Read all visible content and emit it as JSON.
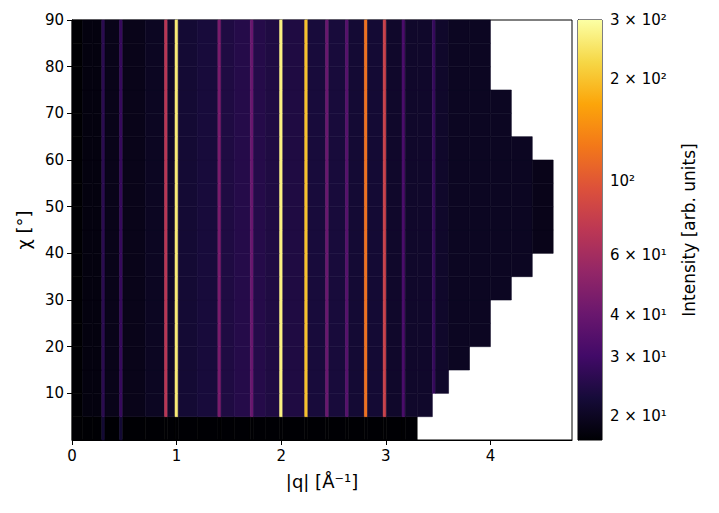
{
  "chart_data": {
    "type": "heatmap",
    "x_label": "|q| [Å⁻¹]",
    "y_label": "χ [°]",
    "xlim": [
      0,
      4.78
    ],
    "xticks": [
      0,
      1,
      2,
      3,
      4
    ],
    "ylim": [
      0,
      90
    ],
    "yticks": [
      10,
      20,
      30,
      40,
      50,
      60,
      70,
      80,
      90
    ],
    "grid": false,
    "color": "inferno",
    "q_edges": [
      0,
      0.1,
      0.2,
      0.285,
      0.315,
      0.455,
      0.485,
      0.7,
      0.885,
      0.915,
      0.985,
      1.015,
      1.2,
      1.395,
      1.425,
      1.55,
      1.705,
      1.735,
      1.85,
      1.985,
      2.015,
      2.225,
      2.255,
      2.425,
      2.455,
      2.615,
      2.645,
      2.795,
      2.825,
      2.975,
      3.005,
      3.155,
      3.185,
      3.3,
      3.445,
      3.475,
      3.6,
      3.8,
      4.0,
      4.2,
      4.4,
      4.6,
      4.78
    ],
    "chi_edges": [
      0,
      5,
      10,
      15,
      20,
      25,
      30,
      35,
      40,
      45,
      50,
      55,
      60,
      65,
      70,
      75,
      80,
      85,
      90
    ],
    "cells": [
      [
        16,
        16,
        16,
        22,
        16,
        22,
        16,
        16,
        16,
        16,
        16,
        16,
        16,
        16,
        16,
        16,
        16,
        16,
        16,
        16,
        16,
        16,
        16,
        16,
        16,
        16,
        16,
        16,
        16,
        16,
        16,
        16,
        16,
        null,
        null,
        null,
        null,
        null,
        null,
        null,
        null,
        null
      ],
      [
        17,
        18,
        18,
        26,
        19,
        28,
        19,
        20,
        70,
        21,
        260,
        22,
        23,
        45,
        24,
        25,
        40,
        25,
        24,
        270,
        24,
        200,
        23,
        40,
        23,
        35,
        22,
        120,
        22,
        80,
        21,
        32,
        21,
        21,
        null,
        null,
        null,
        null,
        null,
        null,
        null,
        null
      ],
      [
        17,
        18,
        18,
        26,
        19,
        28,
        19,
        20,
        70,
        21,
        260,
        22,
        23,
        45,
        24,
        25,
        40,
        25,
        24,
        270,
        24,
        200,
        23,
        40,
        23,
        35,
        22,
        120,
        22,
        80,
        21,
        32,
        21,
        21,
        28,
        21,
        null,
        null,
        null,
        null,
        null,
        null
      ],
      [
        17,
        18,
        18,
        26,
        19,
        28,
        19,
        20,
        70,
        21,
        260,
        22,
        23,
        45,
        24,
        25,
        40,
        25,
        24,
        270,
        24,
        200,
        23,
        40,
        23,
        35,
        22,
        120,
        22,
        80,
        21,
        32,
        21,
        21,
        28,
        21,
        20,
        null,
        null,
        null,
        null,
        null
      ],
      [
        17,
        18,
        18,
        26,
        19,
        28,
        19,
        20,
        70,
        21,
        260,
        22,
        23,
        45,
        24,
        25,
        40,
        25,
        24,
        270,
        24,
        200,
        23,
        40,
        23,
        35,
        22,
        120,
        22,
        80,
        21,
        32,
        21,
        21,
        28,
        21,
        20,
        20,
        null,
        null,
        null,
        null
      ],
      [
        17,
        18,
        18,
        26,
        19,
        28,
        19,
        20,
        70,
        21,
        260,
        22,
        23,
        45,
        24,
        25,
        40,
        25,
        24,
        270,
        24,
        200,
        23,
        40,
        23,
        35,
        22,
        120,
        22,
        80,
        21,
        32,
        21,
        21,
        28,
        21,
        20,
        20,
        null,
        null,
        null,
        null
      ],
      [
        17,
        18,
        18,
        26,
        19,
        28,
        19,
        20,
        70,
        21,
        260,
        22,
        23,
        45,
        24,
        25,
        40,
        25,
        24,
        270,
        24,
        200,
        23,
        40,
        23,
        35,
        22,
        120,
        22,
        80,
        21,
        32,
        21,
        21,
        28,
        21,
        20,
        20,
        20,
        null,
        null,
        null
      ],
      [
        17,
        18,
        18,
        26,
        19,
        28,
        19,
        20,
        70,
        21,
        260,
        22,
        23,
        45,
        24,
        25,
        40,
        25,
        24,
        270,
        24,
        200,
        23,
        40,
        23,
        35,
        22,
        120,
        22,
        80,
        21,
        32,
        21,
        21,
        28,
        21,
        20,
        20,
        20,
        20,
        null,
        null
      ],
      [
        17,
        18,
        18,
        26,
        19,
        28,
        19,
        20,
        70,
        21,
        260,
        22,
        23,
        45,
        24,
        25,
        40,
        25,
        24,
        270,
        24,
        200,
        23,
        40,
        23,
        35,
        22,
        120,
        22,
        80,
        21,
        32,
        21,
        21,
        28,
        21,
        20,
        20,
        20,
        20,
        19,
        null
      ],
      [
        17,
        18,
        18,
        26,
        19,
        28,
        19,
        20,
        70,
        21,
        260,
        22,
        23,
        45,
        24,
        25,
        40,
        25,
        24,
        270,
        24,
        200,
        23,
        40,
        23,
        35,
        22,
        120,
        22,
        80,
        21,
        32,
        21,
        21,
        28,
        21,
        20,
        20,
        20,
        20,
        19,
        null
      ],
      [
        17,
        18,
        18,
        26,
        19,
        28,
        19,
        20,
        70,
        21,
        260,
        22,
        23,
        45,
        24,
        25,
        40,
        25,
        24,
        270,
        24,
        200,
        23,
        40,
        23,
        35,
        22,
        120,
        22,
        80,
        21,
        32,
        21,
        21,
        28,
        21,
        20,
        20,
        20,
        20,
        19,
        null
      ],
      [
        17,
        18,
        18,
        26,
        19,
        28,
        19,
        20,
        70,
        21,
        260,
        22,
        23,
        45,
        24,
        25,
        40,
        25,
        24,
        270,
        24,
        200,
        23,
        40,
        23,
        35,
        22,
        120,
        22,
        80,
        21,
        32,
        21,
        21,
        28,
        21,
        20,
        20,
        20,
        20,
        19,
        null
      ],
      [
        17,
        18,
        18,
        26,
        19,
        28,
        19,
        20,
        70,
        21,
        260,
        22,
        23,
        45,
        24,
        25,
        40,
        25,
        24,
        270,
        24,
        200,
        23,
        40,
        23,
        35,
        22,
        120,
        22,
        80,
        21,
        32,
        21,
        21,
        28,
        21,
        20,
        20,
        20,
        20,
        null,
        null
      ],
      [
        17,
        18,
        18,
        26,
        19,
        28,
        19,
        20,
        70,
        21,
        260,
        22,
        23,
        45,
        24,
        25,
        40,
        25,
        24,
        270,
        24,
        200,
        23,
        40,
        23,
        35,
        22,
        120,
        22,
        80,
        21,
        32,
        21,
        21,
        28,
        21,
        20,
        20,
        20,
        null,
        null,
        null
      ],
      [
        17,
        18,
        18,
        26,
        19,
        28,
        19,
        20,
        70,
        21,
        260,
        22,
        23,
        45,
        24,
        25,
        40,
        25,
        24,
        270,
        24,
        200,
        23,
        40,
        23,
        35,
        22,
        120,
        22,
        80,
        21,
        32,
        21,
        21,
        28,
        21,
        20,
        20,
        20,
        null,
        null,
        null
      ],
      [
        17,
        18,
        18,
        26,
        19,
        28,
        19,
        20,
        70,
        21,
        260,
        22,
        23,
        45,
        24,
        25,
        40,
        25,
        24,
        270,
        24,
        200,
        23,
        40,
        23,
        35,
        22,
        120,
        22,
        80,
        21,
        32,
        21,
        21,
        28,
        21,
        20,
        20,
        null,
        null,
        null,
        null
      ],
      [
        17,
        18,
        18,
        26,
        19,
        28,
        19,
        20,
        70,
        21,
        260,
        22,
        23,
        45,
        24,
        25,
        40,
        25,
        24,
        270,
        24,
        200,
        23,
        40,
        23,
        35,
        22,
        120,
        22,
        80,
        21,
        32,
        21,
        21,
        28,
        21,
        20,
        20,
        null,
        null,
        null,
        null
      ],
      [
        17,
        18,
        18,
        26,
        19,
        28,
        19,
        20,
        70,
        21,
        260,
        22,
        23,
        45,
        24,
        25,
        40,
        25,
        24,
        270,
        24,
        200,
        23,
        40,
        23,
        35,
        22,
        120,
        22,
        80,
        21,
        32,
        21,
        21,
        28,
        21,
        20,
        20,
        null,
        null,
        null,
        null
      ]
    ],
    "colorbar": {
      "label": "Intensity [arb. units]",
      "log": true,
      "range": [
        17,
        300
      ],
      "ticks": [
        {
          "value": 20,
          "label": "2 × 10¹"
        },
        {
          "value": 30,
          "label": "3 × 10¹"
        },
        {
          "value": 40,
          "label": "4 × 10¹"
        },
        {
          "value": 60,
          "label": "6 × 10¹"
        },
        {
          "value": 100,
          "label": "10²"
        },
        {
          "value": 200,
          "label": "2 × 10²"
        },
        {
          "value": 300,
          "label": "3 × 10²"
        }
      ]
    }
  }
}
